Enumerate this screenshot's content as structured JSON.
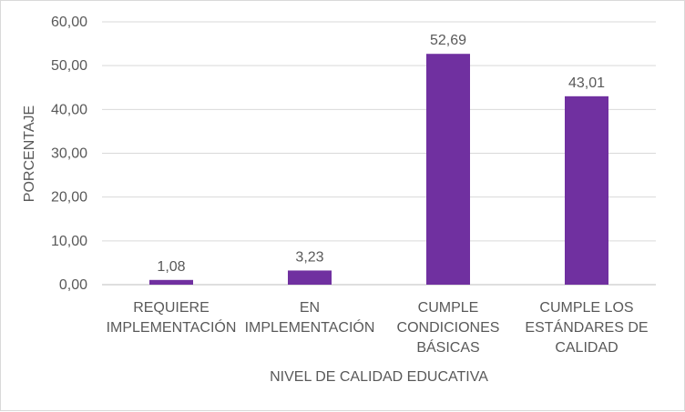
{
  "chart_data": {
    "type": "bar",
    "categories": [
      [
        "REQUIERE",
        "IMPLEMENTACIÓN"
      ],
      [
        "EN",
        "IMPLEMENTACIÓN"
      ],
      [
        "CUMPLE",
        "CONDICIONES",
        "BÁSICAS"
      ],
      [
        "CUMPLE LOS",
        "ESTÁNDARES DE",
        "CALIDAD"
      ]
    ],
    "values": [
      1.08,
      3.23,
      52.69,
      43.01
    ],
    "data_labels": [
      "1,08",
      "3,23",
      "52,69",
      "43,01"
    ],
    "yticks": [
      "0,00",
      "10,00",
      "20,00",
      "30,00",
      "40,00",
      "50,00",
      "60,00"
    ],
    "ylim": [
      0,
      60
    ],
    "xlabel": "NIVEL DE CALIDAD EDUCATIVA",
    "ylabel": "PORCENTAJE",
    "grid": true,
    "bar_color": "#7030a0",
    "grid_color": "#d9d9d9",
    "text_color": "#595959"
  }
}
